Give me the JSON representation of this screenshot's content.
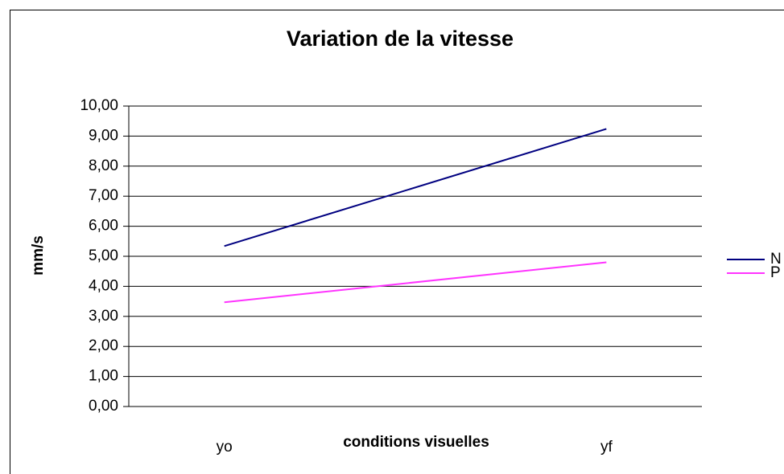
{
  "chart_data": {
    "type": "line",
    "title": "Variation de la vitesse",
    "x_label": "conditions visuelles",
    "y_label": "mm/s",
    "categories": [
      "yo",
      "yf"
    ],
    "series": [
      {
        "name": "N",
        "color": "#000080",
        "values": [
          5.34,
          9.24
        ]
      },
      {
        "name": "P",
        "color": "#ff33ff",
        "values": [
          3.47,
          4.8
        ]
      }
    ],
    "ylim": [
      0,
      10
    ],
    "yticks": [
      {
        "value": 0,
        "label": "0,00"
      },
      {
        "value": 1,
        "label": "1,00"
      },
      {
        "value": 2,
        "label": "2,00"
      },
      {
        "value": 3,
        "label": "3,00"
      },
      {
        "value": 4,
        "label": "4,00"
      },
      {
        "value": 5,
        "label": "5,00"
      },
      {
        "value": 6,
        "label": "6,00"
      },
      {
        "value": 7,
        "label": "7,00"
      },
      {
        "value": 8,
        "label": "8,00"
      },
      {
        "value": 9,
        "label": "9,00"
      },
      {
        "value": 10,
        "label": "10,00"
      }
    ],
    "grid": true,
    "legend": "right"
  }
}
